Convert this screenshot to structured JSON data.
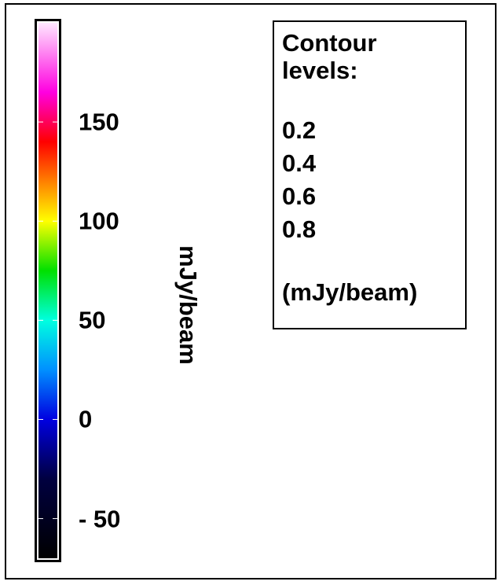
{
  "chart_data": {
    "type": "colorbar",
    "colorbar": {
      "unit_label": "mJy/beam",
      "range": [
        -70,
        200
      ],
      "ticks": [
        {
          "value": -50,
          "label": "- 50"
        },
        {
          "value": 0,
          "label": "0"
        },
        {
          "value": 50,
          "label": "50"
        },
        {
          "value": 100,
          "label": "100"
        },
        {
          "value": 150,
          "label": "150"
        }
      ],
      "colormap_stops": [
        {
          "value": -70,
          "color": "#000000"
        },
        {
          "value": -30,
          "color": "#000040"
        },
        {
          "value": 0,
          "color": "#0000e0"
        },
        {
          "value": 25,
          "color": "#0090ff"
        },
        {
          "value": 50,
          "color": "#00ffe0"
        },
        {
          "value": 75,
          "color": "#00e000"
        },
        {
          "value": 100,
          "color": "#ffff00"
        },
        {
          "value": 120,
          "color": "#ff8000"
        },
        {
          "value": 140,
          "color": "#ff0000"
        },
        {
          "value": 165,
          "color": "#ff00e0"
        },
        {
          "value": 200,
          "color": "#ffe8ff"
        }
      ]
    },
    "contour_legend": {
      "title_line1": "Contour",
      "title_line2": "levels:",
      "levels": [
        "0.2",
        "0.4",
        "0.6",
        "0.8"
      ],
      "unit": "(mJy/beam)"
    }
  }
}
